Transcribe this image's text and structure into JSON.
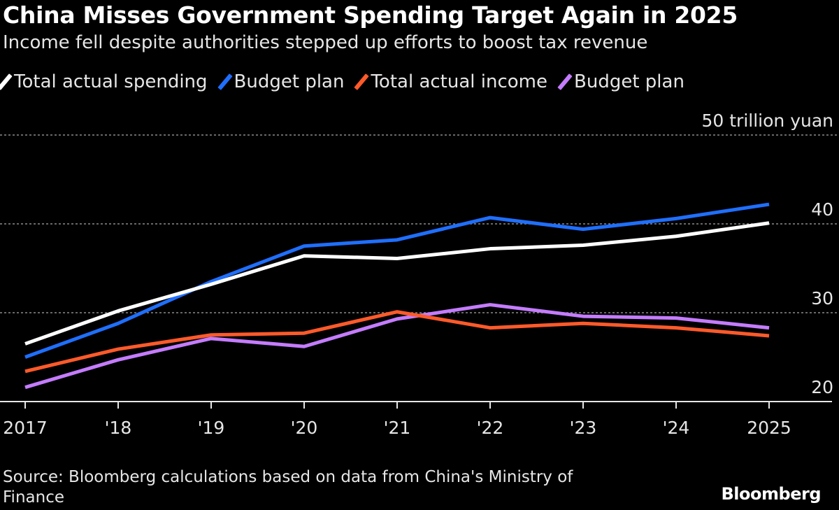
{
  "title": "China Misses Government Spending Target Again in 2025",
  "subtitle": "Income fell despite authorities stepped up efforts to boost tax revenue",
  "source": "Source: Bloomberg calculations based on data from China's Ministry of Finance",
  "logo": "Bloomberg",
  "chart_data": {
    "type": "line",
    "unit_label": "50 trillion yuan",
    "x": [
      2017,
      2018,
      2019,
      2020,
      2021,
      2022,
      2023,
      2024,
      2025
    ],
    "x_tick_labels": [
      "2017",
      "'18",
      "'19",
      "'20",
      "'21",
      "'22",
      "'23",
      "'24",
      "2025"
    ],
    "y_ticks": [
      20,
      30,
      40,
      50
    ],
    "y_tick_labels": [
      "20",
      "30",
      "40",
      "50 trillion yuan"
    ],
    "ylim": [
      20,
      50
    ],
    "grid": true,
    "legend_placement": "top",
    "series": [
      {
        "name": "Total actual spending",
        "color": "#ffffff",
        "values": [
          26.5,
          30.2,
          33.2,
          36.4,
          36.1,
          37.2,
          37.6,
          38.6,
          40.1
        ]
      },
      {
        "name": "Budget plan",
        "color": "#1f6fff",
        "values": [
          25.0,
          28.8,
          33.5,
          37.5,
          38.2,
          40.7,
          39.4,
          40.6,
          42.2
        ]
      },
      {
        "name": "Total actual income",
        "color": "#ff5a2a",
        "values": [
          23.4,
          25.9,
          27.5,
          27.7,
          30.1,
          28.3,
          28.8,
          28.3,
          27.4
        ]
      },
      {
        "name": "Budget plan",
        "color": "#c47cff",
        "values": [
          21.6,
          24.7,
          27.1,
          26.2,
          29.3,
          30.9,
          29.6,
          29.4,
          28.3
        ]
      }
    ]
  }
}
